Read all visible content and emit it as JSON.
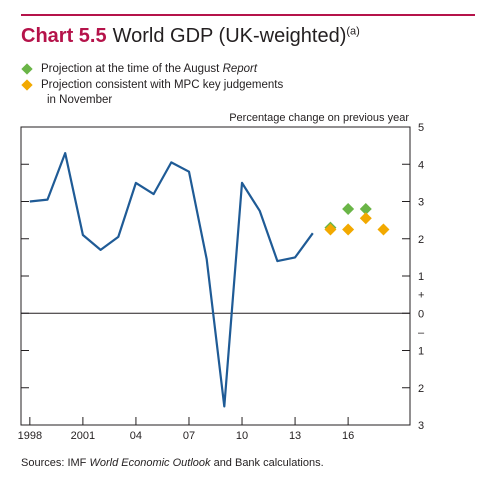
{
  "header": {
    "chart_number": "Chart 5.5",
    "title": "World GDP (UK-weighted)",
    "footnote_marker": "(a)"
  },
  "legend": [
    {
      "label_prefix": "Projection at the time of the August ",
      "label_italic": "Report",
      "label_second_line": "",
      "color": "#6ab547",
      "icon": "green-diamond"
    },
    {
      "label_prefix": "Projection consistent with MPC key judgements",
      "label_italic": "",
      "label_second_line": "in November",
      "color": "#f2a900",
      "icon": "orange-diamond"
    }
  ],
  "sources": {
    "prefix": "Sources: IMF ",
    "italic": "World Economic Outlook",
    "suffix": " and Bank calculations."
  },
  "colors": {
    "accent": "#b5134a",
    "line": "#1f5b96",
    "green": "#6ab547",
    "orange": "#f2a900"
  },
  "chart_data": {
    "type": "line",
    "ylabel": "Percentage change on previous year",
    "ylim": [
      -3,
      5
    ],
    "xlim": [
      1997.5,
      2019.5
    ],
    "y_ticks": [
      5,
      4,
      3,
      2,
      1,
      0,
      -1,
      -2,
      -3
    ],
    "y_tick_labels": [
      "5",
      "4",
      "3",
      "2",
      "1",
      "0",
      "1",
      "2",
      "3"
    ],
    "y_sign_labels": [
      "+",
      "–"
    ],
    "x_ticks": [
      1998,
      2001,
      2004,
      2007,
      2010,
      2013,
      2016
    ],
    "x_tick_labels": [
      "1998",
      "2001",
      "04",
      "07",
      "10",
      "13",
      "16"
    ],
    "series": [
      {
        "style": "line",
        "color": "#1f5b96",
        "x": [
          1998,
          1999,
          2000,
          2001,
          2002,
          2003,
          2004,
          2005,
          2006,
          2007,
          2008,
          2009,
          2010,
          2011,
          2012,
          2013,
          2014
        ],
        "values": [
          3.0,
          3.05,
          4.3,
          2.1,
          1.7,
          2.05,
          3.5,
          3.2,
          4.05,
          3.8,
          1.45,
          -2.5,
          3.5,
          2.75,
          1.4,
          1.5,
          2.15
        ]
      },
      {
        "name": "Projection at the time of the August Report",
        "style": "marker",
        "color": "#6ab547",
        "x": [
          2015,
          2016,
          2017
        ],
        "values": [
          2.3,
          2.8,
          2.8
        ]
      },
      {
        "name": "Projection consistent with MPC key judgements in November",
        "style": "marker",
        "color": "#f2a900",
        "x": [
          2015,
          2016,
          2017,
          2018
        ],
        "values": [
          2.25,
          2.25,
          2.55,
          2.25
        ]
      }
    ]
  }
}
